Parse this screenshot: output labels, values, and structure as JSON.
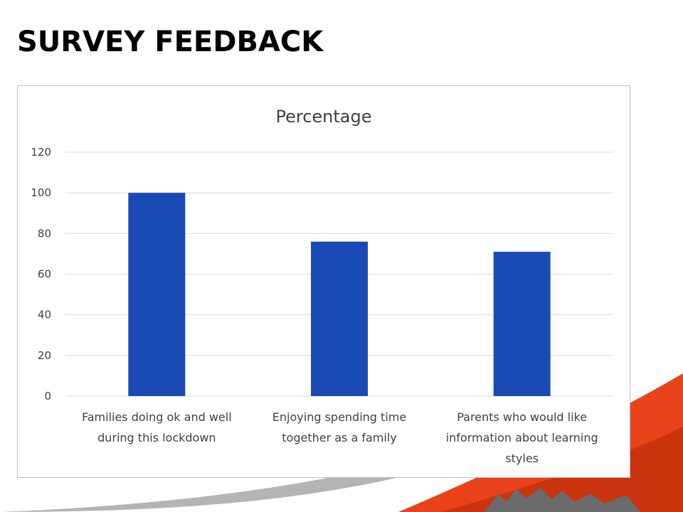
{
  "slide": {
    "title": "SURVEY FEEDBACK"
  },
  "colors": {
    "bar": "#1a4bb5",
    "gridline": "#d9d9d9",
    "text": "#404040",
    "accent_red": "#e8431a"
  },
  "chart_data": {
    "type": "bar",
    "title": "Percentage",
    "categories": [
      [
        "Families doing ok and well",
        "during this lockdown"
      ],
      [
        "Enjoying spending time",
        "together as a family"
      ],
      [
        "Parents who would like",
        "information about learning",
        "styles"
      ]
    ],
    "values": [
      100,
      76,
      71
    ],
    "ylim": [
      0,
      120
    ],
    "yticks": [
      0,
      20,
      40,
      60,
      80,
      100,
      120
    ],
    "grid": true,
    "legend": "none"
  }
}
